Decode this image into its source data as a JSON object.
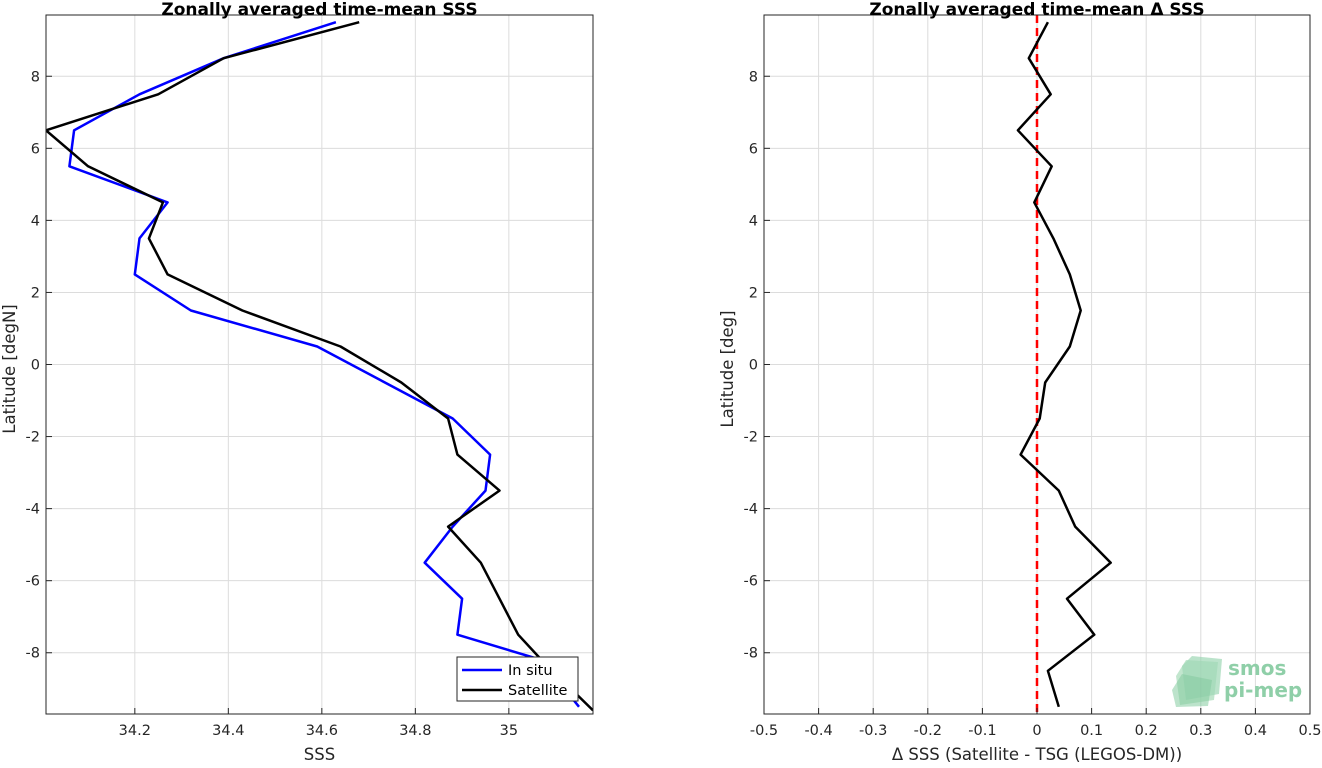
{
  "chart_data": [
    {
      "type": "line",
      "title": "Zonally averaged time-mean SSS",
      "xlabel": "SSS",
      "ylabel": "Latitude [degN]",
      "xlim": [
        34.01,
        35.18
      ],
      "ylim": [
        -9.7,
        9.7
      ],
      "xticks": [
        34.2,
        34.4,
        34.6,
        34.8,
        35
      ],
      "xtick_labels": [
        "34.2",
        "34.4",
        "34.6",
        "34.8",
        "35"
      ],
      "yticks": [
        -8,
        -6,
        -4,
        -2,
        0,
        2,
        4,
        6,
        8
      ],
      "ytick_labels": [
        "-8",
        "-6",
        "-4",
        "-2",
        "0",
        "2",
        "4",
        "6",
        "8"
      ],
      "grid": true,
      "legend": "bottom-right",
      "series": [
        {
          "name": "In situ",
          "color": "#0000ff",
          "x": [
            34.63,
            34.39,
            34.21,
            34.07,
            34.06,
            34.27,
            34.21,
            34.2,
            34.32,
            34.59,
            34.88,
            34.96,
            34.95,
            34.88,
            34.82,
            34.9,
            34.89,
            35.07,
            35.15
          ],
          "y": [
            9.5,
            8.5,
            7.5,
            6.5,
            5.5,
            4.5,
            3.5,
            2.5,
            1.5,
            0.5,
            -1.5,
            -2.5,
            -3.5,
            -4.5,
            -5.5,
            -6.5,
            -7.5,
            -8.2,
            -9.5
          ]
        },
        {
          "name": "Satellite",
          "color": "#000000",
          "x": [
            34.68,
            34.39,
            34.25,
            34.01,
            34.1,
            34.26,
            34.23,
            34.27,
            34.43,
            34.64,
            34.77,
            34.87,
            34.89,
            34.98,
            34.87,
            34.94,
            34.98,
            35.02,
            35.07,
            35.18
          ],
          "y": [
            9.5,
            8.5,
            7.5,
            6.5,
            5.5,
            4.5,
            3.5,
            2.5,
            1.5,
            0.5,
            -0.5,
            -1.5,
            -2.5,
            -3.5,
            -4.5,
            -5.5,
            -6.5,
            -7.5,
            -8.2,
            -9.6
          ]
        }
      ]
    },
    {
      "type": "line",
      "title": "Zonally averaged time-mean Δ SSS",
      "xlabel": "Δ SSS (Satellite - TSG (LEGOS-DM))",
      "ylabel": "Latitude [deg]",
      "xlim": [
        -0.5,
        0.5
      ],
      "ylim": [
        -9.7,
        9.7
      ],
      "xticks": [
        -0.5,
        -0.4,
        -0.3,
        -0.2,
        -0.1,
        0,
        0.1,
        0.2,
        0.3,
        0.4,
        0.5
      ],
      "xtick_labels": [
        "-0.5",
        "-0.4",
        "-0.3",
        "-0.2",
        "-0.1",
        "0",
        "0.1",
        "0.2",
        "0.3",
        "0.4",
        "0.5"
      ],
      "yticks": [
        -8,
        -6,
        -4,
        -2,
        0,
        2,
        4,
        6,
        8
      ],
      "ytick_labels": [
        "-8",
        "-6",
        "-4",
        "-2",
        "0",
        "2",
        "4",
        "6",
        "8"
      ],
      "grid": true,
      "reference_line": {
        "x": 0,
        "color": "#ff0000",
        "style": "dashed"
      },
      "series": [
        {
          "color": "#000000",
          "x": [
            0.02,
            -0.015,
            0.025,
            -0.035,
            0.027,
            -0.005,
            0.03,
            0.06,
            0.08,
            0.06,
            0.015,
            0.005,
            -0.03,
            0.04,
            0.07,
            0.135,
            0.055,
            0.105,
            0.02,
            0.04
          ],
          "y": [
            9.5,
            8.5,
            7.5,
            6.5,
            5.5,
            4.5,
            3.5,
            2.5,
            1.5,
            0.5,
            -0.5,
            -1.5,
            -2.5,
            -3.5,
            -4.5,
            -5.5,
            -6.5,
            -7.5,
            -8.5,
            -9.5
          ]
        }
      ]
    }
  ],
  "logo": {
    "line1": "smos",
    "line2": "pi-mep"
  }
}
